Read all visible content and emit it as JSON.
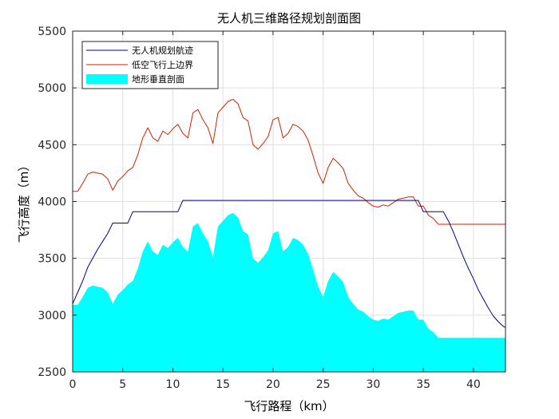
{
  "chart_data": {
    "type": "area",
    "title": "无人机三维路径规划剖面图",
    "xlabel": "飞行路程（km）",
    "ylabel": "飞行高度（m）",
    "xlim": [
      0,
      43.2
    ],
    "ylim": [
      2500,
      5500
    ],
    "xticks": [
      0,
      5,
      10,
      15,
      20,
      25,
      30,
      35,
      40
    ],
    "yticks": [
      2500,
      3000,
      3500,
      4000,
      4500,
      5000,
      5500
    ],
    "grid": true,
    "legend_position": "top-left",
    "colors": {
      "path": "#00008b",
      "upper": "#cc2200",
      "terrain": "#00ffff",
      "grid": "#dfdfdf",
      "axis": "#262626"
    },
    "x": [
      0,
      0.5,
      1,
      1.5,
      2,
      2.5,
      3,
      3.5,
      4,
      4.5,
      5,
      5.5,
      6,
      6.5,
      7,
      7.5,
      8,
      8.5,
      9,
      9.5,
      10,
      10.5,
      11,
      11.5,
      12,
      12.5,
      13,
      13.5,
      14,
      14.5,
      15,
      15.5,
      16,
      16.5,
      17,
      17.5,
      18,
      18.5,
      19,
      19.5,
      20,
      20.5,
      21,
      21.5,
      22,
      22.5,
      23,
      23.5,
      24,
      24.5,
      25,
      25.5,
      26,
      26.5,
      27,
      27.5,
      28,
      28.5,
      29,
      29.5,
      30,
      30.5,
      31,
      31.5,
      32,
      32.5,
      33,
      33.5,
      34,
      34.5,
      35,
      35.5,
      36,
      36.5,
      37,
      37.5,
      38,
      38.5,
      39,
      39.5,
      40,
      40.5,
      41,
      41.5,
      42,
      42.5,
      43,
      43.2
    ],
    "series": [
      {
        "name": "无人机规划航迹",
        "kind": "line",
        "values": [
          3100,
          3200,
          3300,
          3420,
          3500,
          3580,
          3650,
          3720,
          3810,
          3810,
          3810,
          3810,
          3910,
          3910,
          3910,
          3910,
          3910,
          3910,
          3910,
          3910,
          3910,
          3910,
          4010,
          4010,
          4010,
          4010,
          4010,
          4010,
          4010,
          4010,
          4010,
          4010,
          4010,
          4010,
          4010,
          4010,
          4010,
          4010,
          4010,
          4010,
          4010,
          4010,
          4010,
          4010,
          4010,
          4010,
          4010,
          4010,
          4010,
          4010,
          4010,
          4010,
          4010,
          4010,
          4010,
          4010,
          4010,
          4010,
          4010,
          4010,
          4010,
          4010,
          4010,
          4010,
          4010,
          4010,
          4010,
          4010,
          4010,
          4010,
          3910,
          3910,
          3910,
          3910,
          3910,
          3830,
          3730,
          3620,
          3510,
          3410,
          3320,
          3220,
          3140,
          3060,
          2990,
          2940,
          2900,
          2890
        ]
      },
      {
        "name": "低空飞行上边界",
        "kind": "line",
        "values": [
          4090,
          4090,
          4160,
          4240,
          4260,
          4250,
          4240,
          4200,
          4100,
          4180,
          4220,
          4270,
          4300,
          4410,
          4560,
          4650,
          4560,
          4530,
          4620,
          4590,
          4640,
          4680,
          4600,
          4560,
          4780,
          4810,
          4720,
          4650,
          4510,
          4780,
          4830,
          4880,
          4900,
          4860,
          4740,
          4710,
          4500,
          4460,
          4510,
          4570,
          4720,
          4740,
          4560,
          4600,
          4680,
          4660,
          4620,
          4540,
          4400,
          4250,
          4160,
          4300,
          4380,
          4340,
          4290,
          4160,
          4100,
          4050,
          4030,
          3990,
          3960,
          3950,
          3970,
          3960,
          3990,
          4020,
          4030,
          4040,
          4040,
          3960,
          3960,
          3880,
          3850,
          3800,
          3800,
          3800,
          3800,
          3800,
          3800,
          3800,
          3800,
          3800,
          3800,
          3800,
          3800,
          3800,
          3800,
          3800
        ]
      },
      {
        "name": "地形垂直剖面",
        "kind": "area",
        "values": [
          3090,
          3090,
          3160,
          3240,
          3260,
          3250,
          3240,
          3200,
          3100,
          3180,
          3220,
          3270,
          3300,
          3410,
          3560,
          3650,
          3560,
          3530,
          3620,
          3590,
          3640,
          3680,
          3600,
          3560,
          3780,
          3810,
          3720,
          3650,
          3510,
          3780,
          3830,
          3880,
          3900,
          3860,
          3740,
          3710,
          3500,
          3460,
          3510,
          3570,
          3720,
          3740,
          3560,
          3600,
          3680,
          3660,
          3620,
          3540,
          3400,
          3250,
          3160,
          3300,
          3380,
          3340,
          3290,
          3160,
          3100,
          3050,
          3030,
          2990,
          2960,
          2950,
          2970,
          2960,
          2990,
          3020,
          3030,
          3040,
          3040,
          2960,
          2960,
          2880,
          2850,
          2800,
          2800,
          2800,
          2800,
          2800,
          2800,
          2800,
          2800,
          2800,
          2800,
          2800,
          2800,
          2800,
          2800,
          2800
        ]
      }
    ]
  }
}
